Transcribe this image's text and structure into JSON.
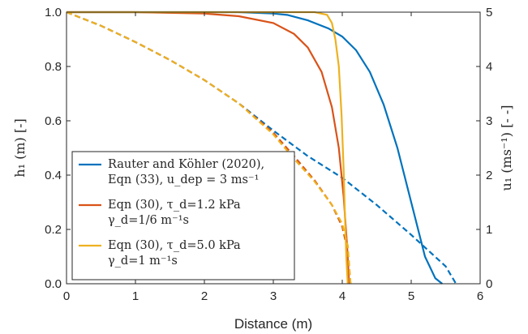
{
  "chart_data": {
    "type": "line",
    "xlabel": "Distance (m)",
    "ylabel_left": "h₁ (m) [-]",
    "ylabel_right": "u₁ (ms⁻¹) [- -]",
    "xlim": [
      0,
      6
    ],
    "ylim_left": [
      0,
      1
    ],
    "ylim_right": [
      0,
      5
    ],
    "x_ticks": [
      0,
      1,
      2,
      3,
      4,
      5,
      6
    ],
    "y_left_ticks": [
      0.0,
      0.2,
      0.4,
      0.6,
      0.8,
      1.0
    ],
    "y_left_tick_labels": [
      "0.0",
      "0.2",
      "0.4",
      "0.6",
      "0.8",
      "1.0"
    ],
    "y_right_ticks": [
      0,
      1,
      2,
      3,
      4,
      5
    ],
    "grid": false,
    "legend_position": "bottom-left",
    "legend": [
      {
        "lines": [
          "Rauter and Köhler (2020),",
          "Eqn (33), u_dep = 3 ms⁻¹"
        ]
      },
      {
        "lines": [
          "Eqn (30), τ_d=1.2 kPa",
          "γ_d=1/6 m⁻¹s"
        ]
      },
      {
        "lines": [
          "Eqn (30), τ_d=5.0 kPa",
          "γ_d=1 m⁻¹s"
        ]
      }
    ],
    "series": [
      {
        "color": "#0072BD",
        "axis": "left",
        "style": "solid",
        "x": [
          0,
          1,
          2,
          2.5,
          3,
          3.2,
          3.5,
          3.8,
          4.0,
          4.2,
          4.4,
          4.6,
          4.8,
          5.0,
          5.2,
          5.35,
          5.45
        ],
        "y": [
          1.0,
          1.0,
          1.0,
          1.0,
          0.995,
          0.99,
          0.97,
          0.94,
          0.91,
          0.86,
          0.78,
          0.66,
          0.5,
          0.3,
          0.1,
          0.02,
          0.0
        ]
      },
      {
        "color": "#0072BD",
        "axis": "right",
        "style": "dashed",
        "x": [
          0,
          0.5,
          1,
          1.5,
          2,
          2.5,
          3,
          3.5,
          4,
          4.5,
          5,
          5.5,
          5.65
        ],
        "y": [
          5.0,
          4.75,
          4.45,
          4.12,
          3.75,
          3.32,
          2.82,
          2.35,
          1.95,
          1.45,
          0.9,
          0.32,
          0.0
        ]
      },
      {
        "color": "#D95319",
        "axis": "left",
        "style": "solid",
        "x": [
          0,
          1,
          2,
          2.5,
          3,
          3.3,
          3.5,
          3.7,
          3.85,
          3.95,
          4.02,
          4.07,
          4.1
        ],
        "y": [
          1.0,
          1.0,
          0.995,
          0.985,
          0.96,
          0.92,
          0.87,
          0.78,
          0.65,
          0.5,
          0.32,
          0.14,
          0.0
        ]
      },
      {
        "color": "#D95319",
        "axis": "right",
        "style": "dashed",
        "x": [
          0,
          0.5,
          1,
          1.5,
          2,
          2.5,
          3,
          3.3,
          3.6,
          3.85,
          4.0,
          4.08,
          4.12
        ],
        "y": [
          5.0,
          4.75,
          4.45,
          4.12,
          3.75,
          3.32,
          2.78,
          2.35,
          1.9,
          1.45,
          1.05,
          0.6,
          0.0
        ]
      },
      {
        "color": "#EDB120",
        "axis": "left",
        "style": "solid",
        "x": [
          0,
          1,
          2,
          3,
          3.6,
          3.78,
          3.85,
          3.9,
          3.95,
          3.99,
          4.02,
          4.04,
          4.06,
          4.08
        ],
        "y": [
          1.0,
          1.0,
          1.0,
          1.0,
          1.0,
          0.99,
          0.96,
          0.9,
          0.8,
          0.62,
          0.42,
          0.24,
          0.09,
          0.0
        ]
      },
      {
        "color": "#EDB120",
        "axis": "right",
        "style": "dashed",
        "x": [
          0,
          0.5,
          1,
          1.5,
          2,
          2.5,
          3,
          3.3,
          3.6,
          3.85,
          4.0,
          4.08,
          4.12
        ],
        "y": [
          5.0,
          4.75,
          4.45,
          4.12,
          3.75,
          3.32,
          2.75,
          2.3,
          1.88,
          1.45,
          1.1,
          0.7,
          0.0
        ]
      }
    ]
  }
}
